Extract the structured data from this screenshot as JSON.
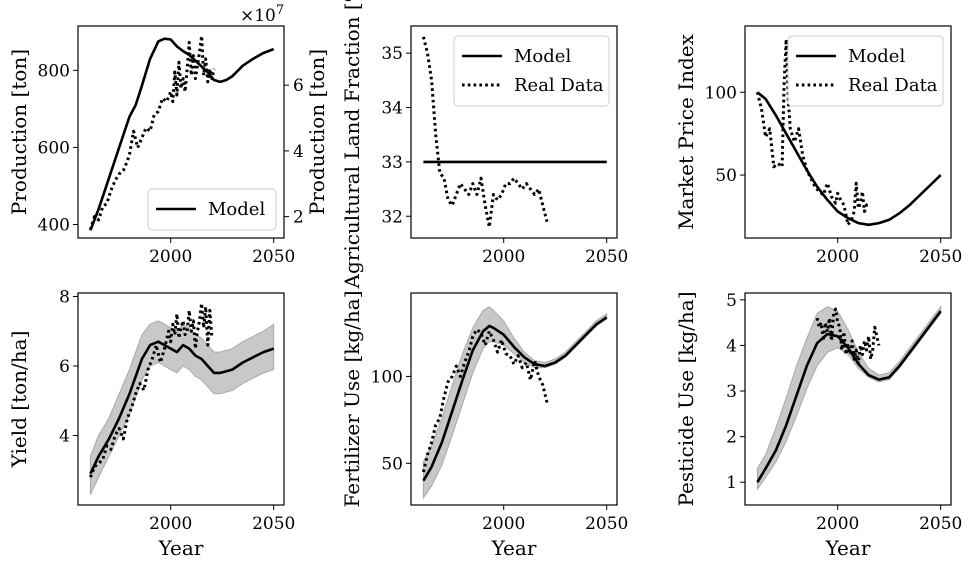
{
  "chart_data": [
    {
      "type": "line",
      "xlabel": "",
      "ylabel": "Production [ton]",
      "ylabel_right": "Production [ton]",
      "right_axis_exponent": "×10",
      "right_axis_exponent_power": "7",
      "xlim": [
        1955,
        2055
      ],
      "ylim": [
        365,
        915
      ],
      "ylim_right": [
        1.35,
        7.8
      ],
      "xticks": [
        2000,
        2050
      ],
      "yticks": [
        400,
        600,
        800
      ],
      "yticks_right": [
        2,
        4,
        6
      ],
      "legend": {
        "position": "lower-right",
        "entries": [
          "Model"
        ]
      },
      "series": [
        {
          "name": "Model",
          "style": "solid",
          "axis": "left",
          "x": [
            1961,
            1965,
            1970,
            1975,
            1980,
            1983,
            1986,
            1990,
            1994,
            1997,
            2000,
            2003,
            2006,
            2009,
            2012,
            2015,
            2018,
            2021,
            2024,
            2027,
            2030,
            2035,
            2040,
            2045,
            2050
          ],
          "y": [
            385,
            440,
            520,
            600,
            680,
            710,
            760,
            830,
            875,
            882,
            880,
            862,
            850,
            840,
            825,
            810,
            795,
            775,
            770,
            775,
            785,
            812,
            830,
            845,
            855
          ]
        },
        {
          "name": "Real Data",
          "style": "dotted",
          "axis": "right",
          "x": [
            1961,
            1963,
            1965,
            1967,
            1969,
            1971,
            1973,
            1975,
            1977,
            1979,
            1980,
            1982,
            1984,
            1986,
            1988,
            1990,
            1992,
            1994,
            1996,
            1998,
            2000,
            2001,
            2002,
            2003,
            2004,
            2005,
            2006,
            2007,
            2008,
            2009,
            2010,
            2011,
            2012,
            2013,
            2014,
            2015,
            2016,
            2017,
            2018,
            2019,
            2020,
            2021
          ],
          "y": [
            1.6,
            2.0,
            1.9,
            2.3,
            2.4,
            2.8,
            3.1,
            3.3,
            3.4,
            3.7,
            3.9,
            4.6,
            4.1,
            4.4,
            4.7,
            4.6,
            5.1,
            5.2,
            5.6,
            5.5,
            5.8,
            5.5,
            6.4,
            5.7,
            6.7,
            5.9,
            6.2,
            5.8,
            6.5,
            7.3,
            6.3,
            6.9,
            6.2,
            6.6,
            7.0,
            7.5,
            6.3,
            6.8,
            6.1,
            6.5,
            6.2,
            6.5
          ]
        }
      ]
    },
    {
      "type": "line",
      "xlabel": "",
      "ylabel": "Agricultural Land Fraction [%]",
      "xlim": [
        1955,
        2055
      ],
      "ylim": [
        31.6,
        35.5
      ],
      "xticks": [
        2000,
        2050
      ],
      "yticks": [
        32,
        33,
        34,
        35
      ],
      "legend": {
        "position": "top-right",
        "entries": [
          "Model",
          "Real Data"
        ]
      },
      "series": [
        {
          "name": "Model",
          "style": "solid",
          "x": [
            1961,
            2050
          ],
          "y": [
            33.0,
            33.0
          ]
        },
        {
          "name": "Real Data",
          "style": "dotted",
          "x": [
            1961,
            1963,
            1965,
            1967,
            1969,
            1971,
            1973,
            1975,
            1977,
            1979,
            1981,
            1983,
            1985,
            1987,
            1989,
            1991,
            1993,
            1995,
            1997,
            1999,
            2001,
            2003,
            2005,
            2007,
            2009,
            2011,
            2013,
            2015,
            2017,
            2019,
            2021
          ],
          "y": [
            35.3,
            35.0,
            34.5,
            33.5,
            32.8,
            32.7,
            32.3,
            32.2,
            32.4,
            32.6,
            32.5,
            32.4,
            32.6,
            32.4,
            32.7,
            32.2,
            31.8,
            32.4,
            32.3,
            32.4,
            32.6,
            32.6,
            32.7,
            32.6,
            32.5,
            32.6,
            32.5,
            32.4,
            32.5,
            32.2,
            31.9
          ]
        }
      ]
    },
    {
      "type": "line",
      "xlabel": "",
      "ylabel": "Market Price Index",
      "xlim": [
        1955,
        2055
      ],
      "ylim": [
        12,
        140
      ],
      "xticks": [
        2000,
        2050
      ],
      "yticks": [
        50,
        100
      ],
      "legend": {
        "position": "top-right",
        "entries": [
          "Model",
          "Real Data"
        ]
      },
      "series": [
        {
          "name": "Model",
          "style": "solid",
          "x": [
            1961,
            1965,
            1970,
            1975,
            1980,
            1985,
            1990,
            1995,
            2000,
            2005,
            2010,
            2015,
            2020,
            2025,
            2030,
            2035,
            2040,
            2045,
            2050
          ],
          "y": [
            100,
            96,
            86,
            75,
            64,
            53,
            43,
            35,
            28,
            24,
            21,
            20,
            21,
            23,
            27,
            32,
            38,
            44,
            50
          ]
        },
        {
          "name": "Real Data",
          "style": "dotted",
          "x": [
            1961,
            1963,
            1965,
            1967,
            1969,
            1971,
            1973,
            1974,
            1975,
            1976,
            1977,
            1979,
            1981,
            1983,
            1985,
            1987,
            1989,
            1991,
            1993,
            1995,
            1997,
            1999,
            2000,
            2001,
            2003,
            2005,
            2007,
            2008,
            2009,
            2010,
            2011,
            2012,
            2013,
            2014,
            2015
          ],
          "y": [
            100,
            90,
            73,
            78,
            55,
            57,
            55,
            105,
            132,
            95,
            78,
            70,
            78,
            62,
            53,
            48,
            43,
            40,
            38,
            45,
            37,
            33,
            39,
            36,
            32,
            20,
            24,
            28,
            45,
            30,
            33,
            40,
            28,
            32,
            30
          ]
        }
      ]
    },
    {
      "type": "line",
      "xlabel": "Year",
      "ylabel": "Yield [ton/ha]",
      "xlim": [
        1955,
        2055
      ],
      "ylim": [
        2.0,
        8.1
      ],
      "xticks": [
        2000,
        2050
      ],
      "yticks": [
        4,
        6,
        8
      ],
      "series": [
        {
          "name": "Model",
          "style": "solid",
          "x": [
            1961,
            1965,
            1970,
            1975,
            1980,
            1983,
            1986,
            1990,
            1994,
            1997,
            2000,
            2003,
            2006,
            2009,
            2012,
            2015,
            2018,
            2021,
            2024,
            2027,
            2030,
            2035,
            2040,
            2045,
            2050
          ],
          "y": [
            2.9,
            3.4,
            3.9,
            4.5,
            5.2,
            5.7,
            6.2,
            6.6,
            6.7,
            6.6,
            6.5,
            6.4,
            6.6,
            6.5,
            6.3,
            6.2,
            6.0,
            5.8,
            5.8,
            5.85,
            5.9,
            6.1,
            6.25,
            6.4,
            6.5
          ],
          "band_lower": [
            2.3,
            2.8,
            3.4,
            4.0,
            4.6,
            5.1,
            5.6,
            6.0,
            6.1,
            6.0,
            5.9,
            5.8,
            6.0,
            5.9,
            5.7,
            5.6,
            5.4,
            5.2,
            5.2,
            5.25,
            5.3,
            5.5,
            5.65,
            5.8,
            5.9
          ],
          "band_upper": [
            3.4,
            4.0,
            4.5,
            5.2,
            5.9,
            6.4,
            6.9,
            7.2,
            7.3,
            7.2,
            7.1,
            7.0,
            7.2,
            7.1,
            6.9,
            6.8,
            6.6,
            6.4,
            6.4,
            6.45,
            6.5,
            6.7,
            6.85,
            7.0,
            7.2
          ]
        },
        {
          "name": "Real Data",
          "style": "dotted",
          "x": [
            1961,
            1963,
            1965,
            1967,
            1969,
            1971,
            1973,
            1975,
            1977,
            1979,
            1981,
            1983,
            1985,
            1987,
            1989,
            1991,
            1993,
            1995,
            1997,
            1999,
            2000,
            2001,
            2002,
            2003,
            2004,
            2005,
            2006,
            2007,
            2008,
            2009,
            2010,
            2011,
            2012,
            2013,
            2014,
            2015,
            2016,
            2017,
            2018,
            2019,
            2020
          ],
          "y": [
            2.8,
            3.1,
            3.2,
            3.3,
            3.7,
            3.6,
            4.0,
            4.2,
            3.9,
            4.5,
            4.8,
            5.2,
            5.5,
            5.3,
            5.9,
            6.2,
            6.6,
            6.1,
            6.5,
            7.0,
            6.7,
            7.2,
            6.9,
            7.5,
            6.8,
            7.1,
            7.3,
            6.9,
            7.0,
            7.6,
            7.0,
            7.3,
            6.5,
            7.0,
            7.3,
            7.8,
            7.1,
            7.7,
            6.6,
            7.6,
            6.8
          ]
        }
      ]
    },
    {
      "type": "line",
      "xlabel": "Year",
      "ylabel": "Fertilizer Use [kg/ha]",
      "xlim": [
        1955,
        2055
      ],
      "ylim": [
        26,
        148
      ],
      "xticks": [
        2000,
        2050
      ],
      "yticks": [
        50,
        100
      ],
      "series": [
        {
          "name": "Model",
          "style": "solid",
          "x": [
            1961,
            1965,
            1970,
            1975,
            1980,
            1985,
            1990,
            1993,
            1995,
            2000,
            2005,
            2010,
            2015,
            2020,
            2025,
            2030,
            2035,
            2040,
            2045,
            2050
          ],
          "y": [
            40,
            48,
            62,
            80,
            98,
            115,
            126,
            129,
            128,
            124,
            117,
            111,
            107,
            106,
            108,
            112,
            118,
            124,
            130,
            134
          ],
          "band_lower": [
            30,
            37,
            49,
            66,
            84,
            102,
            116,
            120,
            120,
            118,
            113,
            108,
            105,
            105,
            107,
            111,
            117,
            123,
            129,
            133
          ],
          "band_upper": [
            51,
            60,
            76,
            95,
            113,
            128,
            138,
            140,
            138,
            132,
            122,
            114,
            109,
            108,
            110,
            114,
            120,
            126,
            132,
            136
          ]
        },
        {
          "name": "Real Data",
          "style": "dotted",
          "x": [
            1961,
            1963,
            1965,
            1967,
            1969,
            1971,
            1973,
            1975,
            1977,
            1979,
            1981,
            1983,
            1985,
            1987,
            1989,
            1991,
            1993,
            1995,
            1997,
            1999,
            2001,
            2003,
            2005,
            2007,
            2009,
            2011,
            2013,
            2015,
            2017,
            2019,
            2021
          ],
          "y": [
            45,
            55,
            62,
            72,
            76,
            88,
            97,
            100,
            106,
            100,
            108,
            114,
            123,
            127,
            125,
            118,
            126,
            121,
            114,
            121,
            113,
            112,
            107,
            112,
            105,
            108,
            98,
            109,
            100,
            95,
            85
          ]
        }
      ]
    },
    {
      "type": "line",
      "xlabel": "Year",
      "ylabel": "Pesticide Use [kg/ha]",
      "xlim": [
        1955,
        2055
      ],
      "ylim": [
        0.5,
        5.15
      ],
      "xticks": [
        2000,
        2050
      ],
      "yticks": [
        1,
        2,
        3,
        4,
        5
      ],
      "series": [
        {
          "name": "Model",
          "style": "solid",
          "x": [
            1961,
            1965,
            1970,
            1975,
            1980,
            1985,
            1990,
            1995,
            2000,
            2005,
            2010,
            2015,
            2020,
            2025,
            2030,
            2035,
            2040,
            2045,
            2050
          ],
          "y": [
            1.0,
            1.3,
            1.7,
            2.25,
            2.9,
            3.55,
            4.05,
            4.25,
            4.2,
            3.95,
            3.6,
            3.35,
            3.25,
            3.3,
            3.55,
            3.85,
            4.15,
            4.45,
            4.75
          ],
          "band_lower": [
            0.85,
            1.1,
            1.45,
            1.9,
            2.45,
            3.05,
            3.55,
            3.85,
            3.95,
            3.8,
            3.5,
            3.3,
            3.2,
            3.25,
            3.5,
            3.8,
            4.1,
            4.4,
            4.7
          ],
          "band_upper": [
            1.3,
            1.6,
            2.2,
            2.85,
            3.55,
            4.15,
            4.7,
            4.85,
            4.75,
            4.35,
            3.85,
            3.5,
            3.35,
            3.4,
            3.65,
            3.95,
            4.25,
            4.55,
            4.85
          ]
        },
        {
          "name": "Real Data",
          "style": "dotted",
          "x": [
            1990,
            1991,
            1992,
            1993,
            1994,
            1995,
            1996,
            1997,
            1998,
            1999,
            2000,
            2001,
            2002,
            2003,
            2004,
            2005,
            2006,
            2007,
            2008,
            2009,
            2010,
            2011,
            2012,
            2013,
            2014,
            2015,
            2016,
            2017,
            2018,
            2019,
            2020
          ],
          "y": [
            4.6,
            4.4,
            4.5,
            4.1,
            4.5,
            4.3,
            4.6,
            4.1,
            4.7,
            4.8,
            4.5,
            4.4,
            3.9,
            4.3,
            3.8,
            4.0,
            3.8,
            4.1,
            3.7,
            3.9,
            3.6,
            4.0,
            3.8,
            4.1,
            3.9,
            4.2,
            3.7,
            3.9,
            4.4,
            4.2,
            4.0
          ]
        }
      ]
    }
  ]
}
